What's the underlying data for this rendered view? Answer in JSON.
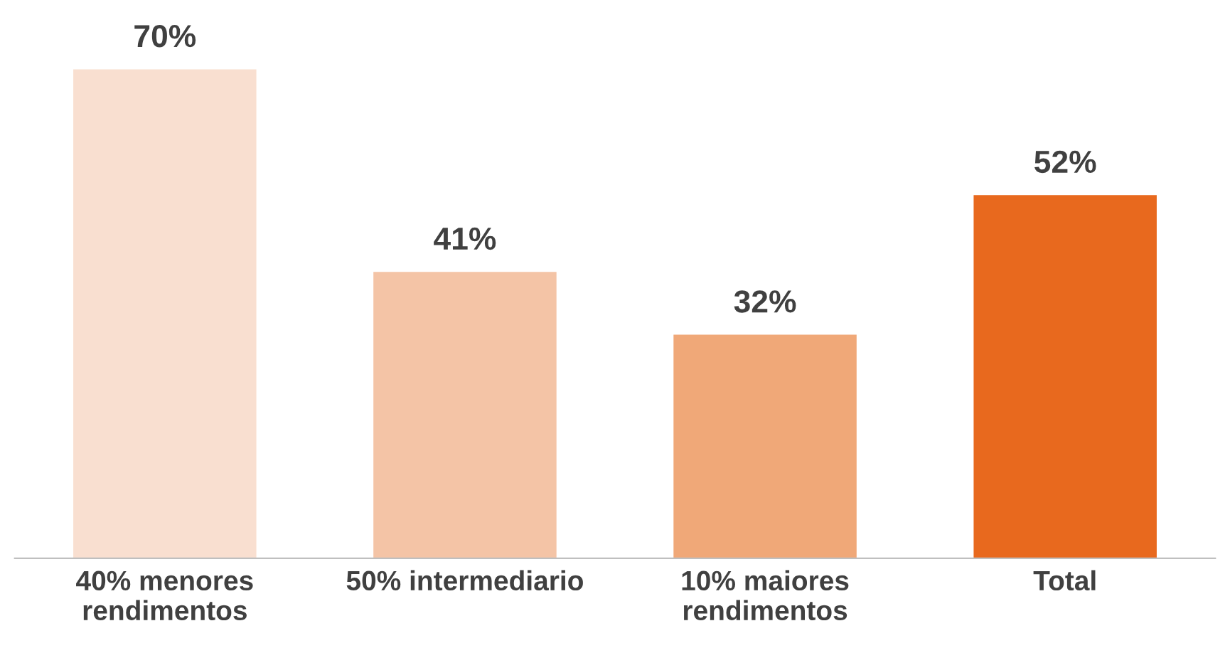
{
  "chart_data": {
    "type": "bar",
    "categories": [
      "40% menores\nrendimentos",
      "50% intermediario",
      "10% maiores\nrendimentos",
      "Total"
    ],
    "values": [
      70,
      41,
      32,
      52
    ],
    "colors": [
      "#f9dfd0",
      "#f4c4a6",
      "#f0a878",
      "#e8691e"
    ],
    "value_labels": [
      "70%",
      "41%",
      "32%",
      "52%"
    ],
    "grid": false,
    "legend": false
  }
}
